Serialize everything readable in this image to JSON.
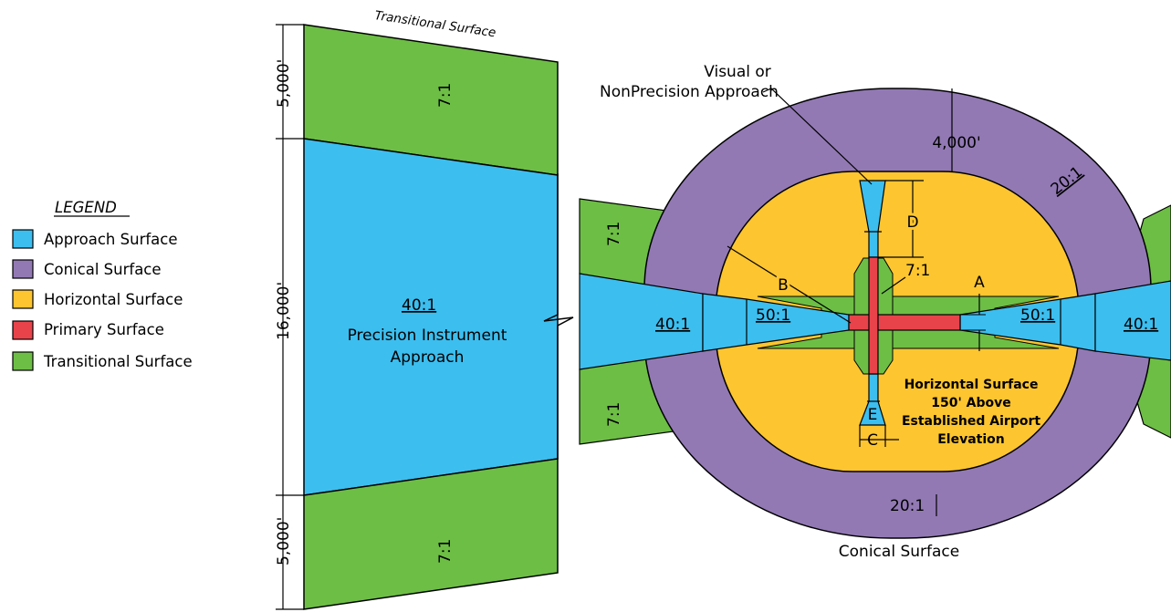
{
  "colors": {
    "approach": "#3CBEEF",
    "conical": "#9279B4",
    "horizontal": "#FDC52F",
    "primary": "#E8434B",
    "transitional": "#6DBE45"
  },
  "legend": {
    "title": "LEGEND",
    "items": [
      {
        "label": "Approach Surface",
        "color": "#3CBEEF"
      },
      {
        "label": "Conical Surface",
        "color": "#9279B4"
      },
      {
        "label": "Horizontal Surface",
        "color": "#FDC52F"
      },
      {
        "label": "Primary Surface",
        "color": "#E8434B"
      },
      {
        "label": "Transitional Surface",
        "color": "#6DBE45"
      }
    ]
  },
  "left_panel": {
    "top_title": "Transitional Surface",
    "dim_top": "5,000'",
    "dim_middle": "16,000'",
    "dim_bottom": "5,000'",
    "slope_top": "7:1",
    "slope_center": "40:1",
    "approach_label_line1": "Precision Instrument",
    "approach_label_line2": "Approach",
    "slope_bottom": "7:1",
    "slope_side_top": "7:1",
    "slope_side_bottom": "7:1"
  },
  "right_panel": {
    "visual_line1": "Visual or",
    "visual_line2": "NonPrecision Approach",
    "conical_width": "4,000'",
    "conical_slope_top": "20:1",
    "conical_slope_bottom": "20:1",
    "conical_title": "Conical Surface",
    "approach_left_outer": "40:1",
    "approach_left_inner": "50:1",
    "approach_right_inner": "50:1",
    "approach_right_outer": "40:1",
    "transitional_slope": "7:1",
    "dim_a": "A",
    "dim_b": "B",
    "dim_c": "C",
    "dim_d": "D",
    "dim_e": "E",
    "horizontal_note_1": "Horizontal Surface",
    "horizontal_note_2": "150' Above",
    "horizontal_note_3": "Established Airport",
    "horizontal_note_4": "Elevation"
  }
}
